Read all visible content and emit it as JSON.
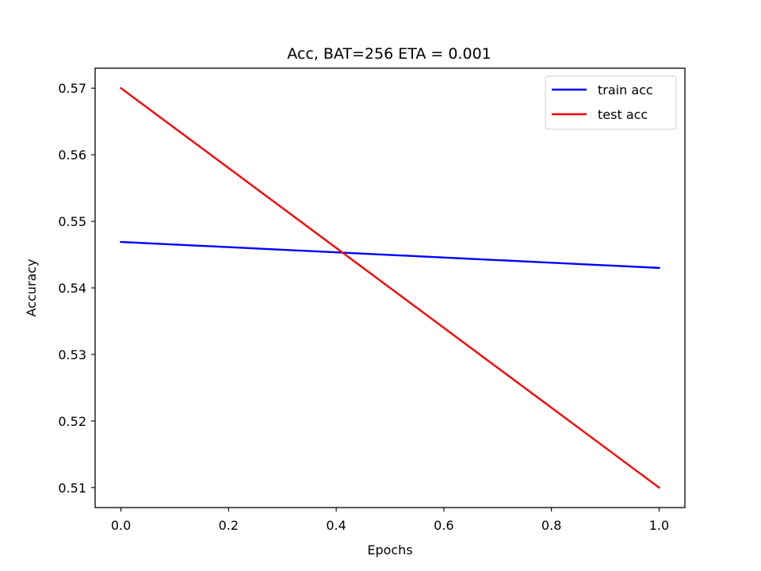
{
  "chart_data": {
    "type": "line",
    "title": "Acc, BAT=256 ETA = 0.001",
    "xlabel": "Epochs",
    "ylabel": "Accuracy",
    "x": [
      0.0,
      1.0
    ],
    "xlim": [
      -0.048,
      1.048
    ],
    "ylim": [
      0.507,
      0.573
    ],
    "xticks": [
      "0.0",
      "0.2",
      "0.4",
      "0.6",
      "0.8",
      "1.0"
    ],
    "xtick_values": [
      0.0,
      0.2,
      0.4,
      0.6,
      0.8,
      1.0
    ],
    "yticks": [
      "0.51",
      "0.52",
      "0.53",
      "0.54",
      "0.55",
      "0.56",
      "0.57"
    ],
    "ytick_values": [
      0.51,
      0.52,
      0.53,
      0.54,
      0.55,
      0.56,
      0.57
    ],
    "grid": false,
    "legend_position": "top-right",
    "series": [
      {
        "name": "train acc",
        "values": [
          0.5469,
          0.543
        ],
        "color": "#0000ff"
      },
      {
        "name": "test acc",
        "values": [
          0.57,
          0.51
        ],
        "color": "#ff0000"
      }
    ]
  }
}
